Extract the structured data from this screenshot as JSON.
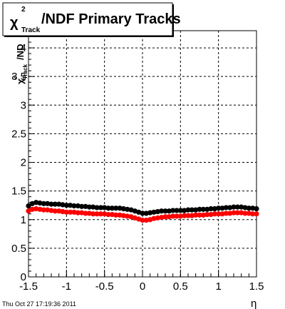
{
  "chart_data": {
    "type": "scatter",
    "title": {
      "symbol": "χ",
      "superscript": "2",
      "subscript": "Track",
      "rest": "/NDF  Primary Tracks"
    },
    "ylabel": {
      "symbol": "χ",
      "superscript": "2",
      "subscript": "Track",
      "rest": "/ND"
    },
    "xlabel": "η",
    "xlim": [
      -1.5,
      1.5
    ],
    "ylim": [
      0,
      4.3
    ],
    "xticks": [
      "-1.5",
      "-1",
      "-0.5",
      "0",
      "0.5",
      "1",
      "1.5"
    ],
    "yticks": [
      "0",
      "0.5",
      "1",
      "1.5",
      "2",
      "2.5",
      "3",
      "3.5",
      "4"
    ],
    "grid": true,
    "timestamp": "Thu Oct 27 17:19:36 2011",
    "series": [
      {
        "color": "#000000",
        "x": [
          -1.5,
          -1.45,
          -1.4,
          -1.35,
          -1.3,
          -1.25,
          -1.2,
          -1.15,
          -1.1,
          -1.05,
          -1.0,
          -0.95,
          -0.9,
          -0.85,
          -0.8,
          -0.75,
          -0.7,
          -0.65,
          -0.6,
          -0.55,
          -0.5,
          -0.45,
          -0.4,
          -0.35,
          -0.3,
          -0.25,
          -0.2,
          -0.15,
          -0.1,
          -0.05,
          0.0,
          0.05,
          0.1,
          0.15,
          0.2,
          0.25,
          0.3,
          0.35,
          0.4,
          0.45,
          0.5,
          0.55,
          0.6,
          0.65,
          0.7,
          0.75,
          0.8,
          0.85,
          0.9,
          0.95,
          1.0,
          1.05,
          1.1,
          1.15,
          1.2,
          1.25,
          1.3,
          1.35,
          1.4,
          1.45,
          1.5
        ],
        "values": [
          1.24,
          1.28,
          1.3,
          1.29,
          1.28,
          1.28,
          1.27,
          1.27,
          1.27,
          1.26,
          1.25,
          1.25,
          1.24,
          1.24,
          1.23,
          1.23,
          1.22,
          1.22,
          1.21,
          1.21,
          1.21,
          1.2,
          1.2,
          1.2,
          1.2,
          1.19,
          1.18,
          1.17,
          1.15,
          1.13,
          1.11,
          1.11,
          1.12,
          1.13,
          1.14,
          1.15,
          1.15,
          1.15,
          1.16,
          1.16,
          1.16,
          1.16,
          1.17,
          1.17,
          1.17,
          1.18,
          1.18,
          1.18,
          1.19,
          1.19,
          1.2,
          1.2,
          1.21,
          1.21,
          1.22,
          1.22,
          1.22,
          1.21,
          1.2,
          1.2,
          1.19
        ]
      },
      {
        "color": "#ff0000",
        "x": [
          -1.5,
          -1.45,
          -1.4,
          -1.35,
          -1.3,
          -1.25,
          -1.2,
          -1.15,
          -1.1,
          -1.05,
          -1.0,
          -0.95,
          -0.9,
          -0.85,
          -0.8,
          -0.75,
          -0.7,
          -0.65,
          -0.6,
          -0.55,
          -0.5,
          -0.45,
          -0.4,
          -0.35,
          -0.3,
          -0.25,
          -0.2,
          -0.15,
          -0.1,
          -0.05,
          0.0,
          0.05,
          0.1,
          0.15,
          0.2,
          0.25,
          0.3,
          0.35,
          0.4,
          0.45,
          0.5,
          0.55,
          0.6,
          0.65,
          0.7,
          0.75,
          0.8,
          0.85,
          0.9,
          0.95,
          1.0,
          1.05,
          1.1,
          1.15,
          1.2,
          1.25,
          1.3,
          1.35,
          1.4,
          1.45,
          1.5
        ],
        "values": [
          1.15,
          1.18,
          1.19,
          1.18,
          1.17,
          1.17,
          1.16,
          1.15,
          1.15,
          1.14,
          1.13,
          1.13,
          1.13,
          1.12,
          1.12,
          1.11,
          1.11,
          1.1,
          1.1,
          1.1,
          1.1,
          1.09,
          1.09,
          1.08,
          1.08,
          1.07,
          1.06,
          1.05,
          1.03,
          1.01,
          0.99,
          0.99,
          1.0,
          1.02,
          1.03,
          1.04,
          1.05,
          1.05,
          1.06,
          1.06,
          1.06,
          1.07,
          1.07,
          1.07,
          1.08,
          1.08,
          1.08,
          1.09,
          1.09,
          1.1,
          1.1,
          1.1,
          1.11,
          1.11,
          1.12,
          1.12,
          1.12,
          1.11,
          1.11,
          1.1,
          1.1
        ]
      }
    ]
  }
}
